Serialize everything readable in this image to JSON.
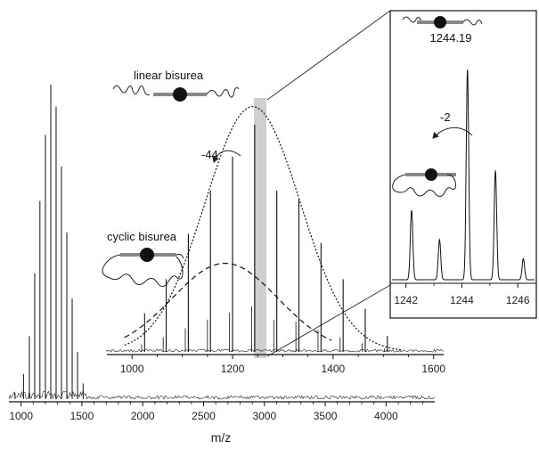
{
  "chart_data": [
    {
      "id": "main",
      "type": "line",
      "title": "",
      "xlabel": "m/z",
      "ylabel": "",
      "xlim": [
        900,
        4400
      ],
      "xticks": [
        1000,
        1500,
        2000,
        2500,
        3000,
        3500,
        4000
      ],
      "series": [
        {
          "peaks_x": [
            950,
            1020,
            1068,
            1112,
            1155,
            1200,
            1244,
            1288,
            1332,
            1376,
            1420,
            1464,
            1510
          ],
          "peaks_y": [
            0.02,
            0.08,
            0.2,
            0.4,
            0.63,
            0.84,
            1.0,
            0.93,
            0.74,
            0.53,
            0.32,
            0.15,
            0.05
          ]
        }
      ]
    },
    {
      "id": "mid-zoom",
      "type": "line",
      "title": "",
      "xlabel": "",
      "ylabel": "",
      "xlim": [
        950,
        1620
      ],
      "xticks": [
        1000,
        1200,
        1400,
        1600
      ],
      "series": [
        {
          "peaks_x": [
            1025,
            1068,
            1112,
            1156,
            1200,
            1244,
            1288,
            1332,
            1376,
            1420,
            1464,
            1508
          ],
          "peaks_y": [
            0.17,
            0.32,
            0.52,
            0.71,
            0.86,
            1.0,
            0.71,
            0.67,
            0.48,
            0.32,
            0.19,
            0.07
          ]
        }
      ],
      "annotations": {
        "linear_label": "linear bisurea",
        "cyclic_label": "cyclic bisurea",
        "shift_label": "-44"
      }
    },
    {
      "id": "inset",
      "type": "line",
      "title": "",
      "xlabel": "",
      "ylabel": "",
      "xlim": [
        1241.5,
        1246.6
      ],
      "xticks": [
        1242,
        1244,
        1246
      ],
      "series": [
        {
          "peaks_x": [
            1242.2,
            1243.2,
            1244.2,
            1245.2,
            1246.2
          ],
          "peaks_y": [
            0.33,
            0.19,
            1.0,
            0.52,
            0.1
          ]
        }
      ],
      "annotations": {
        "peak_label": "1244.19",
        "shift_label": "-2"
      }
    }
  ]
}
